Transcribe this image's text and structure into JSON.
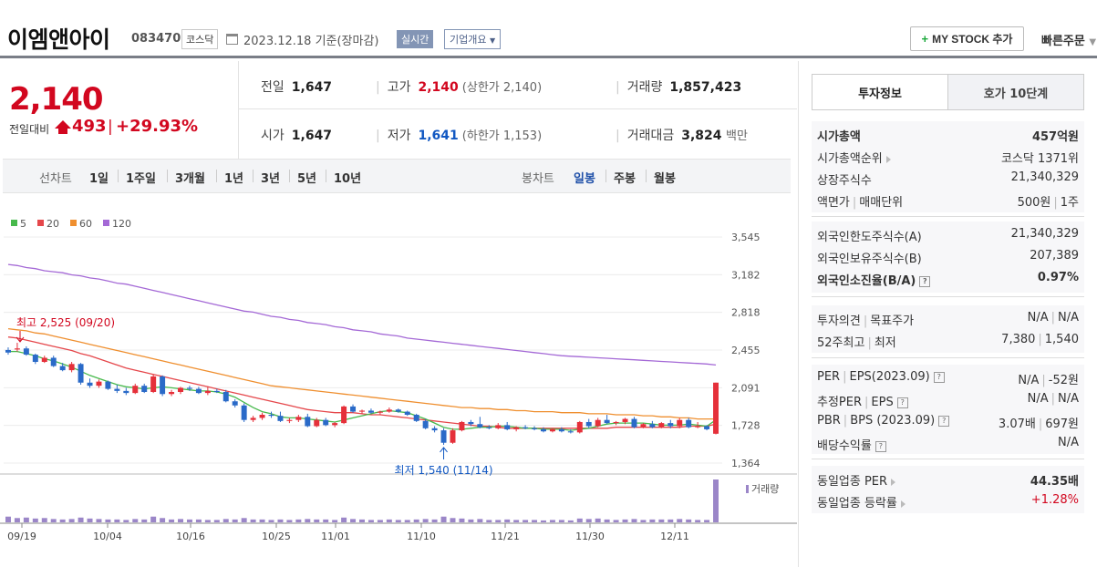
{
  "header": {
    "company": "이엠앤아이",
    "code": "083470",
    "market": "코스닥",
    "date": "2023.12.18 기준(장마감)",
    "realtime": "실시간",
    "corp_info": "기업개요",
    "mystock": "MY STOCK 추가",
    "quick_order": "빠른주문"
  },
  "price": {
    "current": "2,140",
    "diff_label": "전일대비",
    "diff": "493",
    "rate": "+29.93%"
  },
  "stats": {
    "prev_label": "전일",
    "prev": "1,647",
    "high_label": "고가",
    "high": "2,140",
    "upper_limit": "(상한가 2,140)",
    "volume_label": "거래량",
    "volume": "1,857,423",
    "open_label": "시가",
    "open": "1,647",
    "low_label": "저가",
    "low": "1,641",
    "lower_limit": "(하한가 1,153)",
    "amount_label": "거래대금",
    "amount": "3,824",
    "amount_unit": "백만"
  },
  "periods": {
    "line_label": "선차트",
    "line_options": [
      "1일",
      "1주일",
      "3개월",
      "1년",
      "3년",
      "5년",
      "10년"
    ],
    "candle_label": "봉차트",
    "candle_options": [
      "일봉",
      "주봉",
      "월봉"
    ],
    "selected": "일봉"
  },
  "chart_data": {
    "type": "candlestick",
    "legend": [
      {
        "name": "5",
        "color": "#47b94c"
      },
      {
        "name": "20",
        "color": "#e5474b"
      },
      {
        "name": "60",
        "color": "#ef8f2f"
      },
      {
        "name": "120",
        "color": "#a469d6"
      }
    ],
    "y_ticks": [
      "3,545",
      "3,182",
      "2,818",
      "2,455",
      "2,091",
      "1,728",
      "1,364"
    ],
    "ylim": [
      1364,
      3545
    ],
    "x_ticks": [
      "09/19",
      "10/04",
      "10/16",
      "10/25",
      "11/01",
      "11/10",
      "11/21",
      "11/30",
      "12/11"
    ],
    "high_annotation": "최고 2,525 (09/20)",
    "low_annotation": "최저 1,540 (11/14)",
    "volume_label": "거래량",
    "up_color": "#e5303a",
    "down_color": "#2a6ac8",
    "candles": [
      [
        2455,
        2480,
        2410,
        2430
      ],
      [
        2460,
        2525,
        2440,
        2470
      ],
      [
        2470,
        2490,
        2400,
        2410
      ],
      [
        2410,
        2420,
        2320,
        2340
      ],
      [
        2340,
        2400,
        2330,
        2380
      ],
      [
        2380,
        2400,
        2290,
        2300
      ],
      [
        2300,
        2330,
        2250,
        2260
      ],
      [
        2260,
        2340,
        2240,
        2320
      ],
      [
        2320,
        2330,
        2120,
        2140
      ],
      [
        2140,
        2180,
        2090,
        2110
      ],
      [
        2110,
        2170,
        2090,
        2150
      ],
      [
        2150,
        2160,
        2070,
        2080
      ],
      [
        2080,
        2120,
        2040,
        2060
      ],
      [
        2060,
        2090,
        2020,
        2040
      ],
      [
        2040,
        2130,
        2030,
        2110
      ],
      [
        2110,
        2130,
        2040,
        2050
      ],
      [
        2050,
        2220,
        2040,
        2200
      ],
      [
        2200,
        2210,
        2010,
        2030
      ],
      [
        2030,
        2070,
        2010,
        2050
      ],
      [
        2050,
        2100,
        2030,
        2090
      ],
      [
        2090,
        2110,
        2060,
        2080
      ],
      [
        2080,
        2100,
        2030,
        2040
      ],
      [
        2040,
        2100,
        2020,
        2060
      ],
      [
        2060,
        2080,
        2040,
        2050
      ],
      [
        2050,
        2070,
        1950,
        1960
      ],
      [
        1960,
        1980,
        1900,
        1920
      ],
      [
        1920,
        1940,
        1760,
        1780
      ],
      [
        1780,
        1820,
        1760,
        1800
      ],
      [
        1800,
        1850,
        1780,
        1830
      ],
      [
        1830,
        1860,
        1800,
        1820
      ],
      [
        1820,
        1860,
        1760,
        1770
      ],
      [
        1770,
        1800,
        1750,
        1780
      ],
      [
        1780,
        1830,
        1760,
        1810
      ],
      [
        1810,
        1840,
        1710,
        1720
      ],
      [
        1720,
        1800,
        1710,
        1780
      ],
      [
        1780,
        1800,
        1720,
        1730
      ],
      [
        1730,
        1760,
        1710,
        1750
      ],
      [
        1750,
        1920,
        1740,
        1910
      ],
      [
        1910,
        1930,
        1850,
        1860
      ],
      [
        1860,
        1880,
        1840,
        1870
      ],
      [
        1870,
        1890,
        1840,
        1850
      ],
      [
        1850,
        1870,
        1830,
        1860
      ],
      [
        1860,
        1900,
        1850,
        1880
      ],
      [
        1880,
        1890,
        1850,
        1860
      ],
      [
        1860,
        1870,
        1820,
        1830
      ],
      [
        1830,
        1840,
        1760,
        1770
      ],
      [
        1770,
        1790,
        1690,
        1700
      ],
      [
        1700,
        1720,
        1660,
        1680
      ],
      [
        1680,
        1700,
        1540,
        1560
      ],
      [
        1560,
        1700,
        1550,
        1680
      ],
      [
        1680,
        1770,
        1670,
        1760
      ],
      [
        1760,
        1780,
        1720,
        1740
      ],
      [
        1740,
        1810,
        1700,
        1710
      ],
      [
        1710,
        1730,
        1690,
        1700
      ],
      [
        1700,
        1750,
        1690,
        1730
      ],
      [
        1730,
        1760,
        1680,
        1690
      ],
      [
        1690,
        1720,
        1670,
        1710
      ],
      [
        1710,
        1730,
        1690,
        1700
      ],
      [
        1700,
        1720,
        1680,
        1690
      ],
      [
        1690,
        1710,
        1660,
        1670
      ],
      [
        1670,
        1700,
        1660,
        1690
      ],
      [
        1690,
        1710,
        1660,
        1670
      ],
      [
        1670,
        1690,
        1650,
        1660
      ],
      [
        1660,
        1770,
        1650,
        1760
      ],
      [
        1760,
        1790,
        1700,
        1720
      ],
      [
        1720,
        1800,
        1710,
        1780
      ],
      [
        1780,
        1830,
        1740,
        1750
      ],
      [
        1750,
        1770,
        1730,
        1760
      ],
      [
        1760,
        1800,
        1740,
        1790
      ],
      [
        1790,
        1810,
        1700,
        1710
      ],
      [
        1710,
        1750,
        1700,
        1740
      ],
      [
        1740,
        1770,
        1700,
        1710
      ],
      [
        1710,
        1760,
        1700,
        1750
      ],
      [
        1750,
        1780,
        1700,
        1720
      ],
      [
        1720,
        1800,
        1700,
        1780
      ],
      [
        1780,
        1800,
        1700,
        1710
      ],
      [
        1710,
        1760,
        1700,
        1720
      ],
      [
        1720,
        1730,
        1680,
        1690
      ],
      [
        1647,
        2140,
        1641,
        2140
      ]
    ],
    "ma5": [
      2440,
      2440,
      2420,
      2400,
      2370,
      2350,
      2320,
      2290,
      2250,
      2210,
      2180,
      2150,
      2120,
      2100,
      2090,
      2080,
      2090,
      2100,
      2090,
      2080,
      2070,
      2060,
      2060,
      2050,
      2030,
      2000,
      1950,
      1900,
      1860,
      1840,
      1810,
      1800,
      1800,
      1790,
      1780,
      1770,
      1760,
      1780,
      1800,
      1820,
      1840,
      1860,
      1870,
      1860,
      1850,
      1820,
      1790,
      1750,
      1710,
      1690,
      1690,
      1700,
      1710,
      1710,
      1720,
      1720,
      1710,
      1700,
      1700,
      1690,
      1690,
      1690,
      1680,
      1690,
      1700,
      1720,
      1740,
      1750,
      1750,
      1750,
      1750,
      1740,
      1730,
      1730,
      1730,
      1740,
      1730,
      1720,
      1780
    ],
    "ma20": [
      2580,
      2570,
      2550,
      2530,
      2510,
      2490,
      2470,
      2450,
      2420,
      2400,
      2370,
      2340,
      2310,
      2280,
      2260,
      2240,
      2220,
      2200,
      2180,
      2160,
      2140,
      2120,
      2100,
      2080,
      2060,
      2040,
      2020,
      2000,
      1980,
      1960,
      1940,
      1920,
      1900,
      1880,
      1870,
      1860,
      1850,
      1850,
      1850,
      1840,
      1830,
      1830,
      1820,
      1810,
      1800,
      1790,
      1780,
      1770,
      1760,
      1750,
      1740,
      1730,
      1720,
      1720,
      1710,
      1700,
      1700,
      1700,
      1700,
      1700,
      1700,
      1700,
      1700,
      1700,
      1700,
      1700,
      1700,
      1710,
      1710,
      1710,
      1710,
      1710,
      1710,
      1710,
      1710,
      1720,
      1720,
      1720,
      1740
    ],
    "ma60": [
      2660,
      2650,
      2640,
      2620,
      2610,
      2590,
      2570,
      2550,
      2530,
      2510,
      2490,
      2470,
      2450,
      2430,
      2410,
      2390,
      2370,
      2350,
      2330,
      2310,
      2290,
      2270,
      2250,
      2230,
      2210,
      2190,
      2170,
      2150,
      2130,
      2110,
      2100,
      2090,
      2080,
      2070,
      2060,
      2050,
      2040,
      2030,
      2020,
      2010,
      2000,
      1990,
      1980,
      1970,
      1960,
      1950,
      1940,
      1930,
      1920,
      1910,
      1900,
      1900,
      1890,
      1890,
      1880,
      1880,
      1870,
      1870,
      1860,
      1860,
      1860,
      1850,
      1850,
      1850,
      1840,
      1840,
      1840,
      1830,
      1830,
      1830,
      1820,
      1820,
      1810,
      1810,
      1800,
      1800,
      1790,
      1790,
      1790
    ],
    "ma120": [
      3280,
      3270,
      3250,
      3240,
      3220,
      3210,
      3200,
      3180,
      3170,
      3150,
      3140,
      3120,
      3100,
      3090,
      3070,
      3050,
      3030,
      3010,
      2990,
      2970,
      2950,
      2930,
      2910,
      2890,
      2870,
      2850,
      2830,
      2820,
      2800,
      2780,
      2770,
      2750,
      2740,
      2720,
      2710,
      2700,
      2680,
      2670,
      2650,
      2640,
      2630,
      2610,
      2600,
      2590,
      2570,
      2560,
      2550,
      2540,
      2530,
      2520,
      2510,
      2500,
      2490,
      2480,
      2470,
      2460,
      2450,
      2440,
      2430,
      2420,
      2410,
      2400,
      2395,
      2390,
      2385,
      2380,
      2375,
      2370,
      2365,
      2360,
      2355,
      2350,
      2345,
      2340,
      2335,
      2330,
      2325,
      2320,
      2310
    ],
    "volume": [
      12,
      9,
      10,
      8,
      9,
      7,
      6,
      7,
      10,
      8,
      7,
      6,
      6,
      5,
      7,
      6,
      12,
      9,
      6,
      7,
      6,
      6,
      5,
      5,
      7,
      6,
      9,
      6,
      6,
      5,
      6,
      5,
      6,
      7,
      6,
      6,
      5,
      10,
      7,
      6,
      5,
      5,
      6,
      5,
      5,
      6,
      7,
      6,
      12,
      9,
      8,
      6,
      7,
      5,
      5,
      6,
      5,
      5,
      5,
      4,
      5,
      5,
      4,
      8,
      7,
      8,
      6,
      5,
      6,
      7,
      5,
      6,
      6,
      6,
      7,
      6,
      5,
      5,
      90
    ]
  },
  "info_panel": {
    "tab_invest": "투자정보",
    "tab_order": "호가 10단계",
    "mkt_cap_label": "시가총액",
    "mkt_cap": "457억원",
    "mkt_rank_label": "시가총액순위",
    "mkt_rank": "코스닥 1371위",
    "shares_label": "상장주식수",
    "shares": "21,340,329",
    "par_label": "액면가",
    "unit_label": "매매단위",
    "par": "500원",
    "unit": "1주",
    "foreign_limit_label": "외국인한도주식수(A)",
    "foreign_limit": "21,340,329",
    "foreign_hold_label": "외국인보유주식수(B)",
    "foreign_hold": "207,389",
    "foreign_rate_label": "외국인소진율(B/A)",
    "foreign_rate": "0.97%",
    "opinion_label": "투자의견",
    "target_label": "목표주가",
    "opinion": "N/A",
    "target": "N/A",
    "w52_label": "52주최고",
    "w52_low_label": "최저",
    "w52_high": "7,380",
    "w52_low": "1,540",
    "per_label": "PER",
    "eps_label": "EPS(2023.09)",
    "per": "N/A",
    "eps": "-52원",
    "est_per_label": "추정PER",
    "est_eps_label": "EPS",
    "est_per": "N/A",
    "est_eps": "N/A",
    "pbr_label": "PBR",
    "bps_label": "BPS (2023.09)",
    "pbr": "3.07배",
    "bps": "697원",
    "div_label": "배당수익률",
    "div": "N/A",
    "ind_per_label": "동일업종 PER",
    "ind_per": "44.35배",
    "ind_rate_label": "동일업종 등락률",
    "ind_rate": "+1.28%"
  }
}
